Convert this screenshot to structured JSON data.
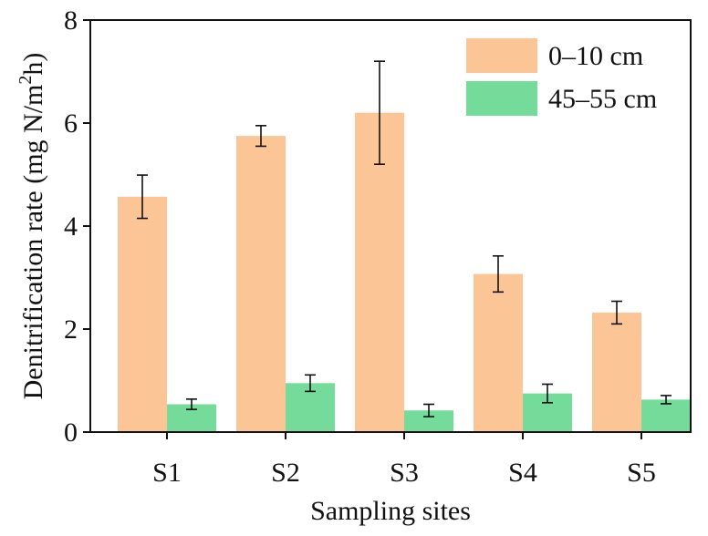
{
  "chart_data": {
    "type": "bar",
    "title": "",
    "xlabel": "Sampling sites",
    "ylabel": "Denitrification rate (mg N/m²h)",
    "ylabel_parts": {
      "pre": "Denitrification rate (mg N/m",
      "sup": "2",
      "post": "h)"
    },
    "categories": [
      "S1",
      "S2",
      "S3",
      "S4",
      "S5"
    ],
    "ylim": [
      0,
      8
    ],
    "yticks": [
      0,
      2,
      4,
      6,
      8
    ],
    "ytick_labels": [
      "0",
      "2",
      "4",
      "6",
      "8"
    ],
    "legend_position": "top-right",
    "series": [
      {
        "name": "0–10 cm",
        "color": "#FBC596",
        "values": [
          4.57,
          5.75,
          6.2,
          3.07,
          2.32
        ],
        "errors": [
          0.42,
          0.2,
          1.0,
          0.35,
          0.22
        ]
      },
      {
        "name": "45–55 cm",
        "color": "#74DB9B",
        "values": [
          0.54,
          0.95,
          0.42,
          0.75,
          0.63
        ],
        "errors": [
          0.1,
          0.16,
          0.12,
          0.18,
          0.08
        ]
      }
    ]
  }
}
